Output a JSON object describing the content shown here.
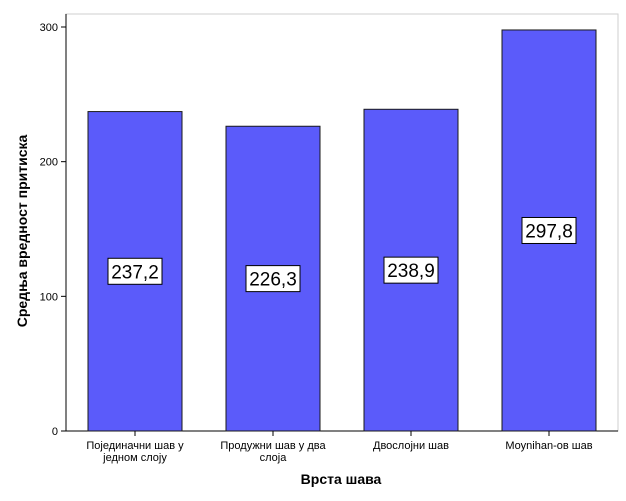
{
  "chart_data": {
    "type": "bar",
    "title": "",
    "xlabel": "Врста шава",
    "ylabel": "Средња вредност притиска",
    "categories": [
      [
        "Појединачни шав у",
        "једном слоју"
      ],
      [
        "Продужни шав у два",
        "слоја"
      ],
      [
        "Двослојни шав"
      ],
      [
        "Moynihan-ов шав"
      ]
    ],
    "values": [
      237.2,
      226.3,
      238.9,
      297.8
    ],
    "data_labels": [
      "237,2",
      "226,3",
      "238,9",
      "297,8"
    ],
    "ylim": [
      0,
      300
    ],
    "yticks": [
      0,
      100,
      200,
      300
    ],
    "ytick_labels": [
      "0",
      "100",
      "200",
      "300"
    ],
    "bar_color": "#5b5bfa",
    "bar_edge_color": "#1a1a1a",
    "grid": false
  }
}
